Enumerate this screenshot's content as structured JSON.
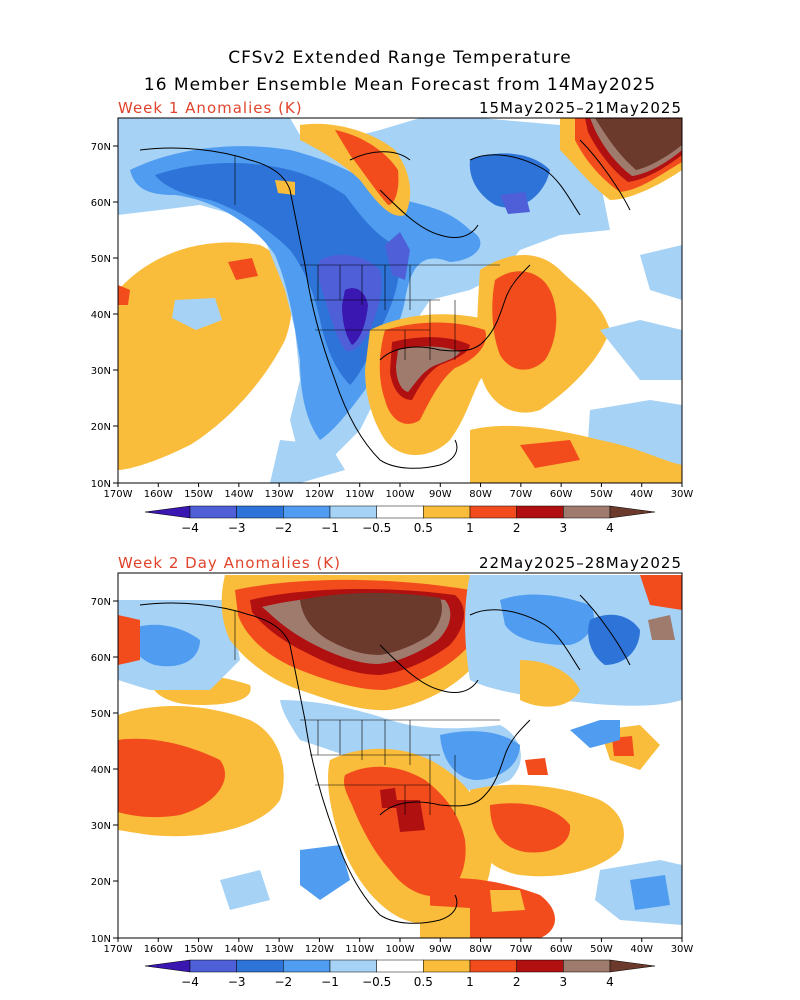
{
  "title_line1": "CFSv2 Extended Range Temperature",
  "title_line2": "16 Member Ensemble Mean Forecast from 14May2025",
  "panels": [
    {
      "label": "Week 1 Anomalies (K)",
      "dates": "15May2025–21May2025"
    },
    {
      "label": "Week 2 Day Anomalies (K)",
      "dates": "22May2025–28May2025"
    }
  ],
  "lat_labels": [
    "70N",
    "60N",
    "50N",
    "40N",
    "30N",
    "20N",
    "10N"
  ],
  "lon_labels": [
    "170W",
    "160W",
    "150W",
    "140W",
    "130W",
    "120W",
    "110W",
    "100W",
    "90W",
    "80W",
    "70W",
    "60W",
    "50W",
    "40W",
    "30W"
  ],
  "colorbar": {
    "labels": [
      "−4",
      "−3",
      "−2",
      "−1",
      "−0.5",
      "0.5",
      "1",
      "2",
      "3",
      "4"
    ],
    "colors": [
      "#3a17b0",
      "#4e5fd8",
      "#2e74d8",
      "#4f9cf0",
      "#a6d2f6",
      "#ffffff",
      "#f9bd3b",
      "#f24c1d",
      "#b01010",
      "#9f7b6e",
      "#6b3a2c"
    ]
  },
  "colors": {
    "title_red": "#e0442c"
  }
}
